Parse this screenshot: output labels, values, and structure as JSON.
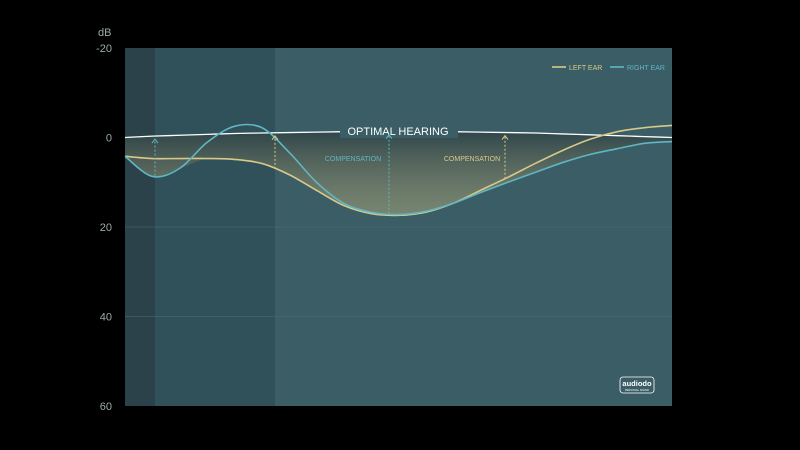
{
  "chart_data": {
    "type": "line",
    "ylabel": "dB",
    "ylim": [
      -20,
      60
    ],
    "y_inverted": true,
    "yticks": [
      "-20",
      "0",
      "20",
      "40",
      "60"
    ],
    "grid": true,
    "legend_position": "top-right",
    "series": [
      {
        "name": "LEFT EAR",
        "color": "#d8c98a",
        "values": [
          4.2,
          4.7,
          4.7,
          4.7,
          4.9,
          5.8,
          8.3,
          11.8,
          15.2,
          17,
          17.4,
          16.7,
          14.7,
          11.8,
          8.9,
          5.8,
          2.9,
          0.4,
          -1.3,
          -2.2,
          -2.7
        ]
      },
      {
        "name": "RIGHT EAR",
        "color": "#5fb6c4",
        "values": [
          4.2,
          8.7,
          6.9,
          1.1,
          -2.5,
          -2.2,
          3.3,
          10,
          14.7,
          16.7,
          17.2,
          16.5,
          14.7,
          12.3,
          10,
          7.8,
          5.6,
          3.8,
          2.5,
          1.3,
          0.9
        ]
      }
    ],
    "reference": {
      "label": "OPTIMAL HEARING",
      "color": "#ffffff",
      "values": [
        0,
        -0.3,
        -0.5,
        -0.7,
        -0.9,
        -1.0,
        -1.1,
        -1.2,
        -1.3,
        -1.3,
        -1.3,
        -1.3,
        -1.3,
        -1.2,
        -1.1,
        -1.0,
        -0.8,
        -0.6,
        -0.4,
        -0.2,
        0
      ]
    },
    "annotations": [
      {
        "text": "COMPENSATION",
        "series": "RIGHT EAR",
        "color": "#5fb6c4"
      },
      {
        "text": "COMPENSATION",
        "series": "LEFT EAR",
        "color": "#d8c98a"
      }
    ]
  },
  "logo": {
    "name": "audiodo",
    "tagline": "PERSONAL SOUND"
  },
  "colors": {
    "background": "#000000",
    "plot": "#3a5d66",
    "band_dark": "#2b424a",
    "band_mid": "#30505a"
  }
}
